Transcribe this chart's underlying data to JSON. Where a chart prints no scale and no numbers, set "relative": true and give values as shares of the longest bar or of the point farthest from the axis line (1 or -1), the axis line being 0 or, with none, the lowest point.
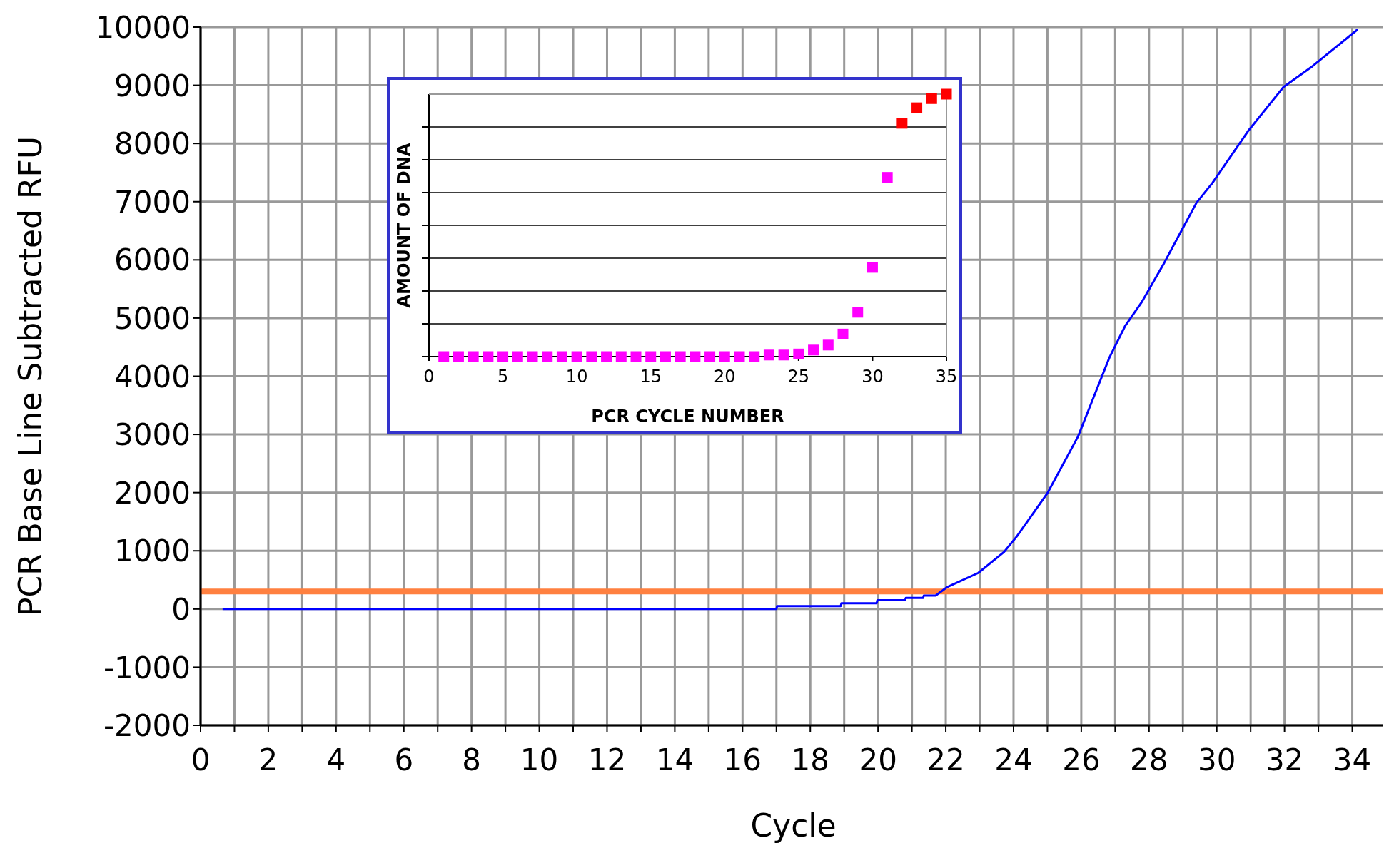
{
  "chart_data": [
    {
      "type": "line",
      "xlabel": "Cycle",
      "ylabel": "PCR Base Line Subtracted RFU",
      "xlim": [
        0,
        35
      ],
      "ylim": [
        -2000,
        10000
      ],
      "xticks": [
        0,
        {
          "value": 1,
          "label": null
        },
        2,
        {
          "value": 3,
          "label": null
        },
        4,
        {
          "value": 5,
          "label": null
        },
        6,
        {
          "value": 7,
          "label": null
        },
        8,
        {
          "value": 9,
          "label": null
        },
        10,
        {
          "value": 11,
          "label": null
        },
        12,
        {
          "value": 13,
          "label": null
        },
        14,
        {
          "value": 15,
          "label": null
        },
        16,
        {
          "value": 17,
          "label": null
        },
        18,
        {
          "value": 19,
          "label": null
        },
        20,
        {
          "value": 21,
          "label": null
        },
        22,
        {
          "value": 23,
          "label": null
        },
        24,
        {
          "value": 25,
          "label": null
        },
        26,
        {
          "value": 27,
          "label": null
        },
        28,
        {
          "value": 29,
          "label": null
        },
        30,
        {
          "value": 31,
          "label": null
        },
        32,
        {
          "value": 33,
          "label": null
        },
        34,
        {
          "value": 35,
          "label": null
        }
      ],
      "yticks": [
        -2000,
        -1000,
        0,
        1000,
        2000,
        3000,
        4000,
        5000,
        6000,
        7000,
        8000,
        9000,
        10000
      ],
      "grid": true,
      "marker": "none",
      "line_style": "solid",
      "series": [
        {
          "color": "#0000ff",
          "x": [
            0.65,
            17,
            17.02,
            18.9,
            18.92,
            19.96,
            19.98,
            20.8,
            20.82,
            21.33,
            21.35,
            21.7,
            22.05,
            22.96,
            23.72,
            24.1,
            25,
            25.9,
            26.83,
            27.3,
            27.78,
            28.45,
            28.9,
            29.4,
            29.87,
            30.92,
            31.97,
            32.83,
            34.16
          ],
          "values": [
            0,
            0,
            50,
            50,
            100,
            100,
            150,
            150,
            190,
            190,
            230,
            230,
            380,
            620,
            980,
            1250,
            1990,
            2960,
            4320,
            4870,
            5270,
            5950,
            6440,
            6980,
            7320,
            8210,
            8970,
            9330,
            9960
          ]
        }
      ],
      "ref_lines": [
        {
          "axis": "y",
          "value": 300,
          "color": "#ff8040"
        }
      ]
    },
    {
      "type": "scatter",
      "xlabel": "PCR CYCLE NUMBER",
      "ylabel": "AMOUNT OF DNA",
      "relative": true,
      "xlim": [
        0,
        35
      ],
      "xticks": [
        0,
        5,
        10,
        15,
        20,
        25,
        30,
        35
      ],
      "tick_labels": "x",
      "grid": "y",
      "marker": "square",
      "series": [
        {
          "color": "#ff00ff",
          "x": [
            1,
            2,
            3,
            4,
            5,
            6,
            7,
            8,
            9,
            10,
            11,
            12,
            13,
            14,
            15,
            16,
            17,
            18,
            19,
            20,
            21,
            22,
            23,
            24,
            25,
            26,
            27,
            28,
            29,
            30,
            31
          ],
          "values": [
            0,
            0,
            0,
            0,
            0,
            0,
            0,
            0,
            0,
            0,
            0,
            0,
            0,
            0,
            0,
            0,
            0,
            0,
            0,
            0,
            0,
            0,
            0.006,
            0.006,
            0.01,
            0.025,
            0.044,
            0.086,
            0.169,
            0.34,
            0.683
          ]
        },
        {
          "color": "#ff0000",
          "x": [
            32,
            33,
            34,
            35
          ],
          "values": [
            0.889,
            0.948,
            0.983,
            1
          ]
        }
      ]
    }
  ]
}
